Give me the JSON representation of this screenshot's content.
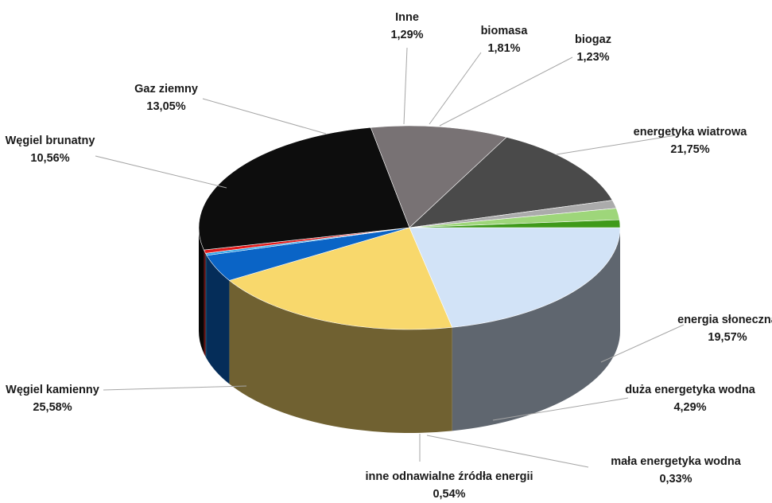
{
  "chart_data": {
    "type": "pie",
    "style": "3d-exploded-depth",
    "start_angle_deg": 0,
    "direction": "clockwise",
    "slices": [
      {
        "label": "energetyka wiatrowa",
        "value": 21.75,
        "display": "21,75%",
        "color": "#d2e3f7"
      },
      {
        "label": "energia słoneczna",
        "value": 19.57,
        "display": "19,57%",
        "color": "#f8d86c"
      },
      {
        "label": "duża energetyka wodna",
        "value": 4.29,
        "display": "4,29%",
        "color": "#0a64c6"
      },
      {
        "label": "mała energetyka wodna",
        "value": 0.33,
        "display": "0,33%",
        "color": "#2aa3e8"
      },
      {
        "label": "inne odnawialne źródła energii",
        "value": 0.54,
        "display": "0,54%",
        "color": "#e21b1b"
      },
      {
        "label": "Węgiel kamienny",
        "value": 25.58,
        "display": "25,58%",
        "color": "#0d0d0d"
      },
      {
        "label": "Węgiel brunatny",
        "value": 10.56,
        "display": "10,56%",
        "color": "#787274"
      },
      {
        "label": "Gaz ziemny",
        "value": 13.05,
        "display": "13,05%",
        "color": "#4a4a4a"
      },
      {
        "label": "Inne",
        "value": 1.29,
        "display": "1,29%",
        "color": "#ababab"
      },
      {
        "label": "biomasa",
        "value": 1.81,
        "display": "1,81%",
        "color": "#9ed67a"
      },
      {
        "label": "biogaz",
        "value": 1.23,
        "display": "1,23%",
        "color": "#3f9a1a"
      }
    ]
  }
}
